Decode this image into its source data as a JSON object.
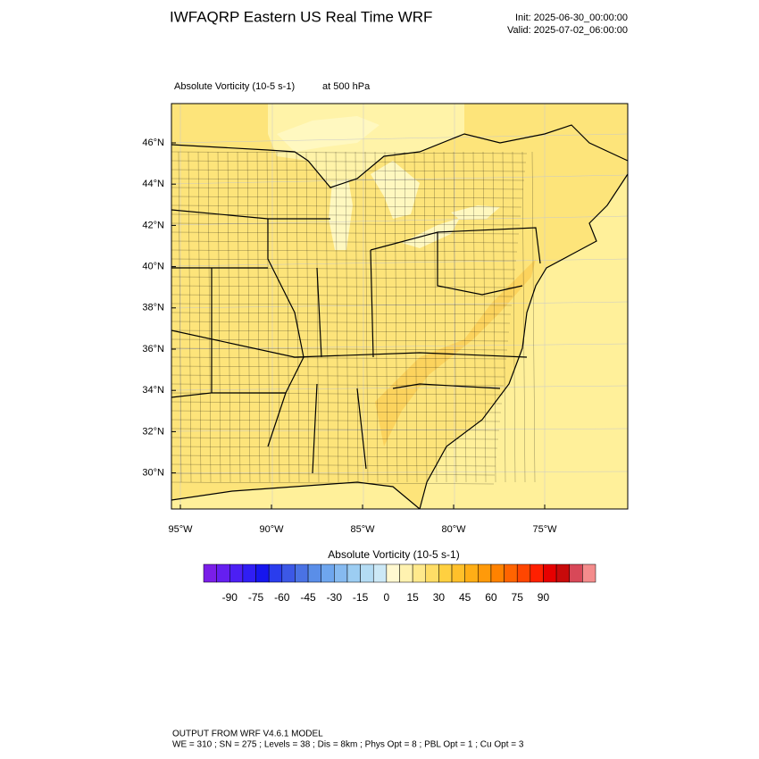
{
  "header": {
    "title": "IWFAQRP Eastern US Real Time WRF",
    "init": "Init: 2025-06-30_00:00:00",
    "valid": "Valid: 2025-07-02_06:00:00"
  },
  "subtitle": {
    "field": "Absolute Vorticity   (10-5 s-1)",
    "level": "at   500 hPa"
  },
  "map": {
    "lat_labels": [
      "46°N",
      "44°N",
      "42°N",
      "40°N",
      "38°N",
      "36°N",
      "34°N",
      "32°N",
      "30°N"
    ],
    "lon_labels": [
      "95°W",
      "90°W",
      "85°W",
      "80°W",
      "75°W"
    ]
  },
  "colorbar": {
    "title": "Absolute Vorticity  (10-5 s-1)",
    "colors": [
      "#7a1ee8",
      "#651ff0",
      "#4c1ff4",
      "#301ef4",
      "#1616ee",
      "#2a3ded",
      "#3c58e6",
      "#4a72e4",
      "#5a8ee8",
      "#6ea6ee",
      "#86baf0",
      "#9ccdf2",
      "#b4dcf4",
      "#cce8f6",
      "#fff8d0",
      "#fff2b0",
      "#ffe98c",
      "#ffdd66",
      "#ffd040",
      "#ffc02a",
      "#ffae16",
      "#ff9a0a",
      "#ff8200",
      "#ff6400",
      "#ff4600",
      "#ff2000",
      "#e60000",
      "#c80a0a",
      "#d84858",
      "#f48c8c"
    ],
    "labels": [
      "-90",
      "-75",
      "-60",
      "-45",
      "-30",
      "-15",
      "0",
      "15",
      "30",
      "45",
      "60",
      "75",
      "90"
    ]
  },
  "footer": {
    "line1": "OUTPUT FROM WRF V4.6.1 MODEL",
    "line2": "WE = 310 ; SN = 275 ; Levels = 38 ; Dis = 8km ; Phys Opt = 8 ; PBL Opt = 1 ; Cu Opt = 3"
  }
}
